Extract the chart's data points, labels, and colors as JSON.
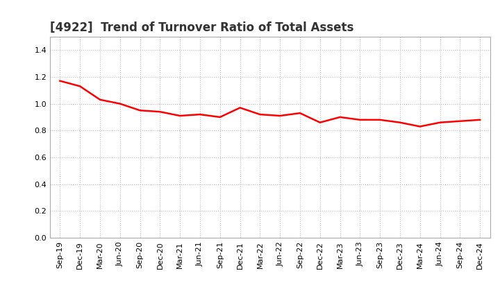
{
  "title": "[4922]  Trend of Turnover Ratio of Total Assets",
  "x_labels": [
    "Sep-19",
    "Dec-19",
    "Mar-20",
    "Jun-20",
    "Sep-20",
    "Dec-20",
    "Mar-21",
    "Jun-21",
    "Sep-21",
    "Dec-21",
    "Mar-22",
    "Jun-22",
    "Sep-22",
    "Dec-22",
    "Mar-23",
    "Jun-23",
    "Sep-23",
    "Dec-23",
    "Mar-24",
    "Jun-24",
    "Sep-24",
    "Dec-24"
  ],
  "y_values": [
    1.17,
    1.13,
    1.03,
    1.0,
    0.95,
    0.94,
    0.91,
    0.92,
    0.9,
    0.97,
    0.92,
    0.91,
    0.93,
    0.86,
    0.9,
    0.88,
    0.88,
    0.86,
    0.83,
    0.86,
    0.87,
    0.88
  ],
  "line_color": "#ff0000",
  "line_width": 1.8,
  "ylim": [
    0.0,
    1.5
  ],
  "yticks": [
    0.0,
    0.2,
    0.4,
    0.6,
    0.8,
    1.0,
    1.2,
    1.4
  ],
  "grid_color": "#bbbbbb",
  "background_color": "#ffffff",
  "title_fontsize": 12,
  "tick_fontsize": 8,
  "title_color": "#333333"
}
